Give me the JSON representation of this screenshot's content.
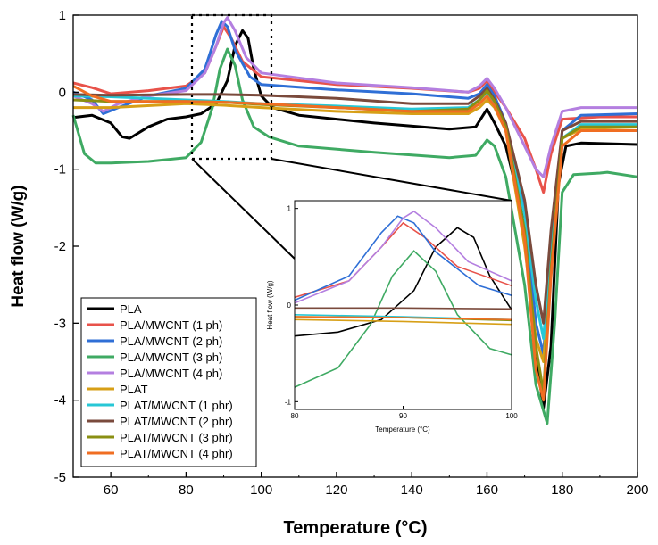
{
  "chart_data": {
    "type": "line",
    "title": "",
    "xlabel": "Temperature (°C)",
    "ylabel": "Heat flow (W/g)",
    "xlim": [
      50,
      200
    ],
    "ylim": [
      -5,
      1
    ],
    "x_ticks": [
      60,
      80,
      100,
      120,
      140,
      160,
      180,
      200
    ],
    "y_ticks": [
      1,
      0,
      -1,
      -2,
      -3,
      -4,
      -5
    ],
    "series": [
      {
        "name": "PLA",
        "color": "#000000",
        "points": [
          [
            50,
            -0.33
          ],
          [
            55,
            -0.3
          ],
          [
            60,
            -0.4
          ],
          [
            63,
            -0.58
          ],
          [
            65,
            -0.6
          ],
          [
            70,
            -0.45
          ],
          [
            75,
            -0.35
          ],
          [
            80,
            -0.32
          ],
          [
            84,
            -0.28
          ],
          [
            88,
            -0.15
          ],
          [
            91,
            0.15
          ],
          [
            93,
            0.6
          ],
          [
            95,
            0.8
          ],
          [
            96.5,
            0.7
          ],
          [
            98,
            0.3
          ],
          [
            100,
            -0.05
          ],
          [
            103,
            -0.2
          ],
          [
            110,
            -0.3
          ],
          [
            130,
            -0.4
          ],
          [
            150,
            -0.48
          ],
          [
            157,
            -0.45
          ],
          [
            160,
            -0.22
          ],
          [
            162,
            -0.4
          ],
          [
            165,
            -0.7
          ],
          [
            170,
            -1.7
          ],
          [
            173,
            -3.4
          ],
          [
            175,
            -4.1
          ],
          [
            177,
            -3.3
          ],
          [
            179,
            -1.2
          ],
          [
            181,
            -0.7
          ],
          [
            185,
            -0.66
          ],
          [
            200,
            -0.68
          ]
        ]
      },
      {
        "name": "PLA/MWCNT (1 ph)",
        "color": "#e8524a",
        "points": [
          [
            50,
            0.12
          ],
          [
            55,
            0.06
          ],
          [
            60,
            -0.02
          ],
          [
            70,
            0.02
          ],
          [
            80,
            0.08
          ],
          [
            85,
            0.25
          ],
          [
            88,
            0.6
          ],
          [
            90,
            0.85
          ],
          [
            92,
            0.7
          ],
          [
            95,
            0.4
          ],
          [
            100,
            0.2
          ],
          [
            120,
            0.1
          ],
          [
            140,
            0.05
          ],
          [
            155,
            0.0
          ],
          [
            158,
            0.05
          ],
          [
            160,
            0.15
          ],
          [
            162,
            0.0
          ],
          [
            165,
            -0.2
          ],
          [
            170,
            -0.6
          ],
          [
            173,
            -1.0
          ],
          [
            175,
            -1.3
          ],
          [
            177,
            -0.8
          ],
          [
            180,
            -0.35
          ],
          [
            190,
            -0.32
          ],
          [
            200,
            -0.32
          ]
        ]
      },
      {
        "name": "PLA/MWCNT (2 ph)",
        "color": "#2f6fd6",
        "points": [
          [
            50,
            0.0
          ],
          [
            55,
            -0.1
          ],
          [
            58,
            -0.28
          ],
          [
            62,
            -0.2
          ],
          [
            70,
            -0.05
          ],
          [
            80,
            0.05
          ],
          [
            85,
            0.3
          ],
          [
            88,
            0.75
          ],
          [
            89.5,
            0.92
          ],
          [
            91,
            0.85
          ],
          [
            93,
            0.55
          ],
          [
            97,
            0.2
          ],
          [
            100,
            0.1
          ],
          [
            120,
            0.03
          ],
          [
            140,
            -0.02
          ],
          [
            155,
            -0.08
          ],
          [
            158,
            -0.02
          ],
          [
            160,
            0.1
          ],
          [
            162,
            -0.05
          ],
          [
            165,
            -0.4
          ],
          [
            170,
            -1.5
          ],
          [
            173,
            -3.0
          ],
          [
            175,
            -3.4
          ],
          [
            177,
            -2.0
          ],
          [
            180,
            -0.5
          ],
          [
            185,
            -0.3
          ],
          [
            200,
            -0.28
          ]
        ]
      },
      {
        "name": "PLA/MWCNT (3 ph)",
        "color": "#3faa63",
        "points": [
          [
            50,
            -0.3
          ],
          [
            53,
            -0.8
          ],
          [
            56,
            -0.92
          ],
          [
            60,
            -0.92
          ],
          [
            70,
            -0.9
          ],
          [
            80,
            -0.85
          ],
          [
            84,
            -0.65
          ],
          [
            87,
            -0.2
          ],
          [
            89,
            0.3
          ],
          [
            91,
            0.56
          ],
          [
            93,
            0.35
          ],
          [
            95,
            -0.1
          ],
          [
            98,
            -0.45
          ],
          [
            102,
            -0.58
          ],
          [
            110,
            -0.7
          ],
          [
            130,
            -0.78
          ],
          [
            150,
            -0.85
          ],
          [
            157,
            -0.82
          ],
          [
            160,
            -0.62
          ],
          [
            162,
            -0.7
          ],
          [
            165,
            -1.1
          ],
          [
            170,
            -2.5
          ],
          [
            173,
            -3.8
          ],
          [
            176,
            -4.3
          ],
          [
            178,
            -3.0
          ],
          [
            180,
            -1.3
          ],
          [
            183,
            -1.07
          ],
          [
            190,
            -1.05
          ],
          [
            192,
            -1.04
          ],
          [
            200,
            -1.1
          ]
        ]
      },
      {
        "name": "PLA/MWCNT (4 ph)",
        "color": "#b47fe0",
        "points": [
          [
            50,
            -0.05
          ],
          [
            55,
            -0.15
          ],
          [
            58,
            -0.25
          ],
          [
            62,
            -0.15
          ],
          [
            70,
            -0.05
          ],
          [
            80,
            0.02
          ],
          [
            85,
            0.25
          ],
          [
            88,
            0.6
          ],
          [
            90,
            0.9
          ],
          [
            91,
            0.97
          ],
          [
            93,
            0.8
          ],
          [
            96,
            0.45
          ],
          [
            100,
            0.25
          ],
          [
            120,
            0.12
          ],
          [
            140,
            0.06
          ],
          [
            155,
            0.0
          ],
          [
            158,
            0.08
          ],
          [
            160,
            0.18
          ],
          [
            162,
            0.05
          ],
          [
            165,
            -0.2
          ],
          [
            170,
            -0.7
          ],
          [
            173,
            -1.0
          ],
          [
            175,
            -1.1
          ],
          [
            177,
            -0.7
          ],
          [
            180,
            -0.25
          ],
          [
            185,
            -0.2
          ],
          [
            200,
            -0.2
          ]
        ]
      },
      {
        "name": "PLAT",
        "color": "#d79f16",
        "points": [
          [
            50,
            -0.2
          ],
          [
            60,
            -0.2
          ],
          [
            80,
            -0.15
          ],
          [
            90,
            -0.17
          ],
          [
            100,
            -0.2
          ],
          [
            120,
            -0.25
          ],
          [
            140,
            -0.28
          ],
          [
            155,
            -0.28
          ],
          [
            158,
            -0.2
          ],
          [
            160,
            -0.1
          ],
          [
            162,
            -0.2
          ],
          [
            165,
            -0.5
          ],
          [
            170,
            -2.0
          ],
          [
            173,
            -3.2
          ],
          [
            175,
            -3.5
          ],
          [
            177,
            -2.2
          ],
          [
            180,
            -0.6
          ],
          [
            185,
            -0.48
          ],
          [
            200,
            -0.5
          ]
        ]
      },
      {
        "name": "PLAT/MWCNT (1 phr)",
        "color": "#27c7d6",
        "points": [
          [
            50,
            -0.05
          ],
          [
            60,
            -0.06
          ],
          [
            80,
            -0.1
          ],
          [
            90,
            -0.12
          ],
          [
            100,
            -0.15
          ],
          [
            120,
            -0.18
          ],
          [
            140,
            -0.22
          ],
          [
            155,
            -0.2
          ],
          [
            158,
            -0.1
          ],
          [
            160,
            0.0
          ],
          [
            162,
            -0.15
          ],
          [
            165,
            -0.45
          ],
          [
            170,
            -1.6
          ],
          [
            173,
            -2.7
          ],
          [
            175,
            -3.2
          ],
          [
            177,
            -2.0
          ],
          [
            180,
            -0.6
          ],
          [
            185,
            -0.42
          ],
          [
            200,
            -0.42
          ]
        ]
      },
      {
        "name": "PLAT/MWCNT (2 phr)",
        "color": "#7a4a3c",
        "points": [
          [
            50,
            -0.03
          ],
          [
            60,
            -0.04
          ],
          [
            80,
            -0.03
          ],
          [
            90,
            -0.03
          ],
          [
            100,
            -0.04
          ],
          [
            120,
            -0.08
          ],
          [
            140,
            -0.15
          ],
          [
            155,
            -0.15
          ],
          [
            158,
            -0.05
          ],
          [
            160,
            0.05
          ],
          [
            162,
            -0.1
          ],
          [
            165,
            -0.4
          ],
          [
            170,
            -1.4
          ],
          [
            173,
            -2.5
          ],
          [
            175,
            -3.0
          ],
          [
            177,
            -1.8
          ],
          [
            180,
            -0.5
          ],
          [
            185,
            -0.38
          ],
          [
            200,
            -0.38
          ]
        ]
      },
      {
        "name": "PLAT/MWCNT (3 phr)",
        "color": "#8a8f12",
        "points": [
          [
            50,
            -0.1
          ],
          [
            60,
            -0.12
          ],
          [
            80,
            -0.12
          ],
          [
            90,
            -0.13
          ],
          [
            100,
            -0.16
          ],
          [
            120,
            -0.2
          ],
          [
            140,
            -0.25
          ],
          [
            155,
            -0.22
          ],
          [
            158,
            -0.1
          ],
          [
            160,
            0.02
          ],
          [
            162,
            -0.12
          ],
          [
            165,
            -0.45
          ],
          [
            170,
            -1.8
          ],
          [
            173,
            -3.3
          ],
          [
            175,
            -3.9
          ],
          [
            177,
            -2.3
          ],
          [
            180,
            -0.6
          ],
          [
            185,
            -0.45
          ],
          [
            200,
            -0.45
          ]
        ]
      },
      {
        "name": "PLAT/MWCNT (4 phr)",
        "color": "#f06e22",
        "points": [
          [
            50,
            0.08
          ],
          [
            55,
            -0.05
          ],
          [
            60,
            -0.12
          ],
          [
            80,
            -0.12
          ],
          [
            90,
            -0.13
          ],
          [
            100,
            -0.15
          ],
          [
            120,
            -0.2
          ],
          [
            140,
            -0.25
          ],
          [
            155,
            -0.25
          ],
          [
            158,
            -0.15
          ],
          [
            160,
            -0.05
          ],
          [
            162,
            -0.18
          ],
          [
            165,
            -0.5
          ],
          [
            170,
            -1.9
          ],
          [
            173,
            -3.6
          ],
          [
            175,
            -4.0
          ],
          [
            177,
            -2.4
          ],
          [
            180,
            -0.7
          ],
          [
            185,
            -0.5
          ],
          [
            200,
            -0.5
          ]
        ]
      }
    ],
    "inset": {
      "xlabel": "Temperature (°C)",
      "ylabel": "Heat flow (W/g)",
      "xlim": [
        80,
        100
      ],
      "ylim": [
        -1,
        1
      ],
      "x_ticks": [
        80,
        90,
        100
      ],
      "y_ticks": [
        1,
        0,
        -1
      ],
      "zoom_region": {
        "xlim": [
          81,
          102.5
        ],
        "ylim": [
          -0.88,
          1.0
        ]
      }
    }
  }
}
